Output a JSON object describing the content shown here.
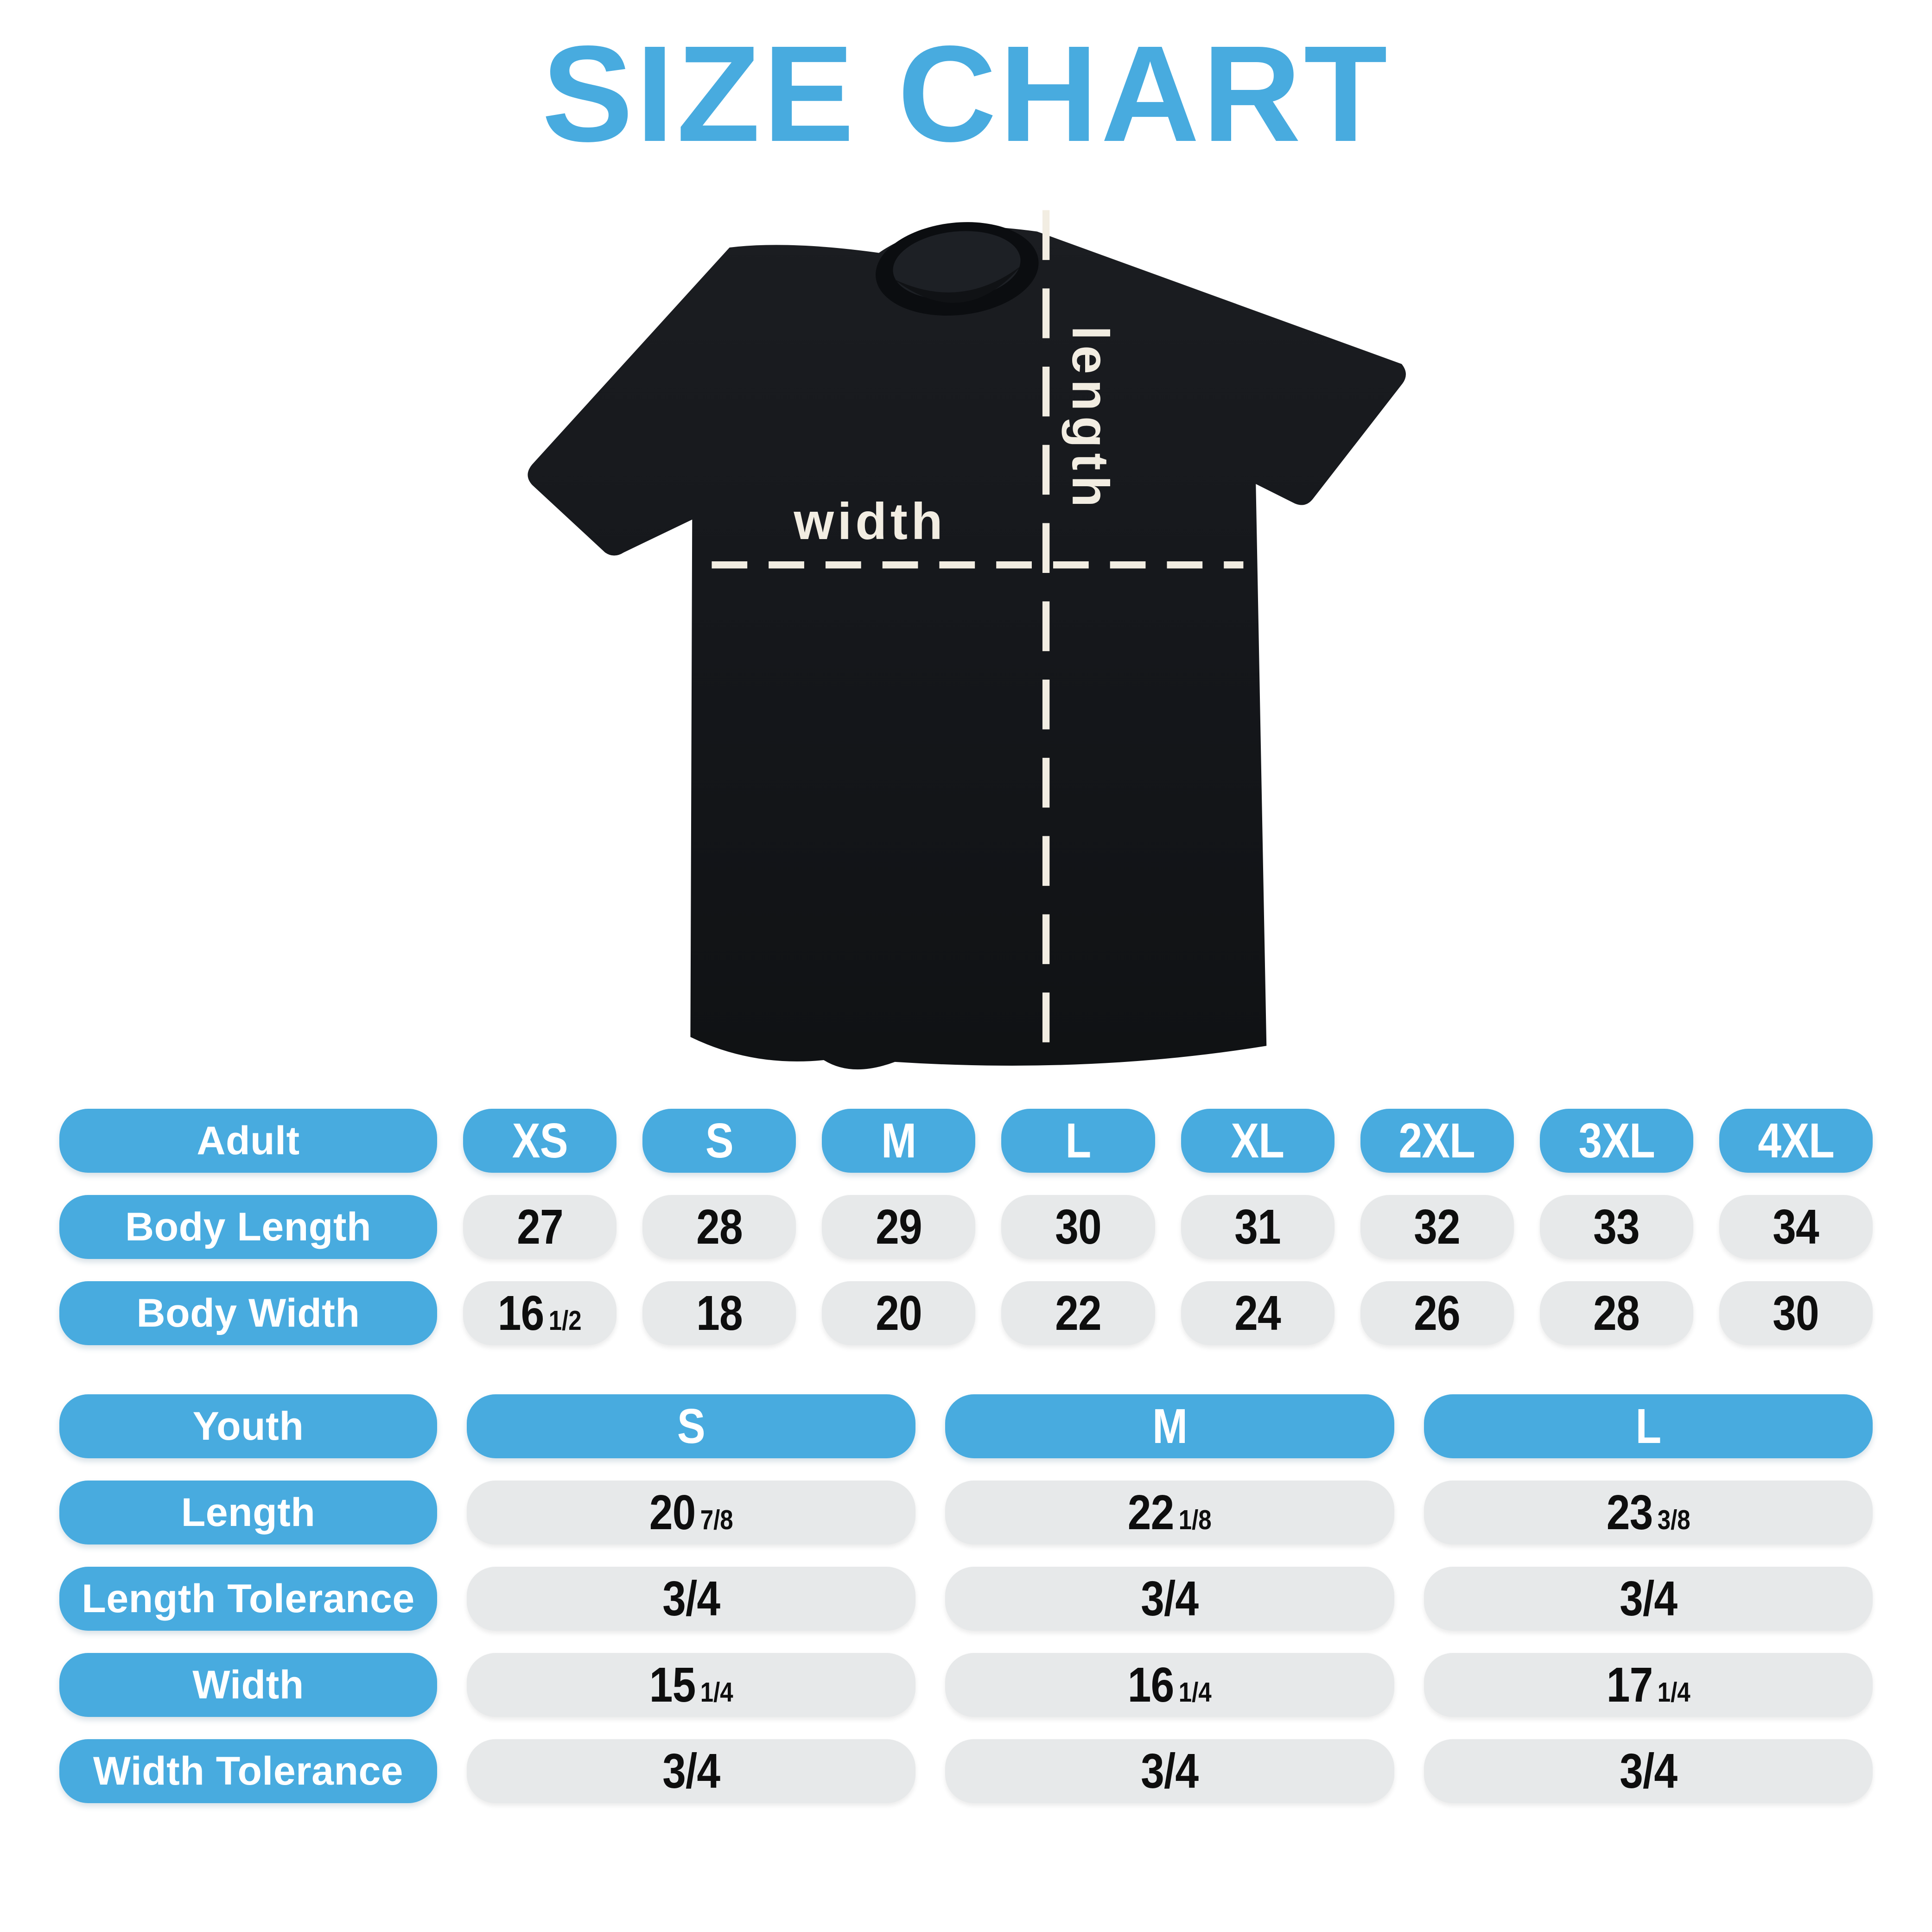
{
  "title": "SIZE CHART",
  "colors": {
    "accent_blue": "#48ABDF",
    "cell_gray": "#E7E9EA",
    "value_text": "#0E0E0E",
    "header_text": "#FFFFFF",
    "shirt_black": "#16181C",
    "shirt_collar": "#0B0D10",
    "dash_cream": "#F2EDE2",
    "background": "#FFFFFF"
  },
  "diagram": {
    "width_label": "width",
    "length_label": "length"
  },
  "adult_table": {
    "group_label": "Adult",
    "sizes": [
      "XS",
      "S",
      "M",
      "L",
      "XL",
      "2XL",
      "3XL",
      "4XL"
    ],
    "rows": [
      {
        "label": "Body Length",
        "values": [
          "27",
          "28",
          "29",
          "30",
          "31",
          "32",
          "33",
          "34"
        ]
      },
      {
        "label": "Body Width",
        "values": [
          "16 1/2",
          "18",
          "20",
          "22",
          "24",
          "26",
          "28",
          "30"
        ]
      }
    ]
  },
  "youth_table": {
    "group_label": "Youth",
    "sizes": [
      "S",
      "M",
      "L"
    ],
    "rows": [
      {
        "label": "Length",
        "values": [
          "20 7/8",
          "22 1/8",
          "23 3/8"
        ]
      },
      {
        "label": "Length Tolerance",
        "values": [
          "3/4",
          "3/4",
          "3/4"
        ]
      },
      {
        "label": "Width",
        "values": [
          "15 1/4",
          "16 1/4",
          "17 1/4"
        ]
      },
      {
        "label": "Width Tolerance",
        "values": [
          "3/4",
          "3/4",
          "3/4"
        ]
      }
    ]
  },
  "chart_data": [
    {
      "type": "table",
      "title": "Adult t-shirt sizes (inches)",
      "columns": [
        "Adult",
        "XS",
        "S",
        "M",
        "L",
        "XL",
        "2XL",
        "3XL",
        "4XL"
      ],
      "rows": [
        [
          "Body Length",
          "27",
          "28",
          "29",
          "30",
          "31",
          "32",
          "33",
          "34"
        ],
        [
          "Body Width",
          "16 1/2",
          "18",
          "20",
          "22",
          "24",
          "26",
          "28",
          "30"
        ]
      ]
    },
    {
      "type": "table",
      "title": "Youth t-shirt sizes (inches)",
      "columns": [
        "Youth",
        "S",
        "M",
        "L"
      ],
      "rows": [
        [
          "Length",
          "20 7/8",
          "22 1/8",
          "23 3/8"
        ],
        [
          "Length Tolerance",
          "3/4",
          "3/4",
          "3/4"
        ],
        [
          "Width",
          "15 1/4",
          "16 1/4",
          "17 1/4"
        ],
        [
          "Width Tolerance",
          "3/4",
          "3/4",
          "3/4"
        ]
      ]
    }
  ]
}
